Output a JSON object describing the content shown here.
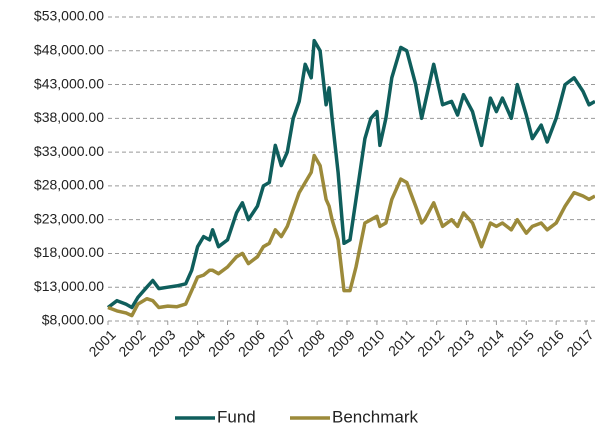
{
  "chart_data": {
    "type": "line",
    "x": [
      2001.0,
      2001.3,
      2001.6,
      2001.8,
      2002.0,
      2002.3,
      2002.5,
      2002.7,
      2003.0,
      2003.3,
      2003.6,
      2003.8,
      2004.0,
      2004.2,
      2004.4,
      2004.5,
      2004.7,
      2005.0,
      2005.3,
      2005.5,
      2005.7,
      2006.0,
      2006.2,
      2006.4,
      2006.6,
      2006.8,
      2007.0,
      2007.2,
      2007.4,
      2007.6,
      2007.8,
      2007.9,
      2008.1,
      2008.3,
      2008.4,
      2008.5,
      2008.7,
      2008.9,
      2009.1,
      2009.3,
      2009.6,
      2009.8,
      2010.0,
      2010.1,
      2010.3,
      2010.5,
      2010.8,
      2011.0,
      2011.3,
      2011.5,
      2011.6,
      2011.9,
      2012.2,
      2012.5,
      2012.7,
      2012.9,
      2013.2,
      2013.5,
      2013.8,
      2014.0,
      2014.2,
      2014.5,
      2014.7,
      2015.0,
      2015.2,
      2015.5,
      2015.7,
      2016.0,
      2016.3,
      2016.6,
      2016.9,
      2017.1,
      2017.3
    ],
    "series": [
      {
        "name": "Fund",
        "color": "#0f5e5c",
        "values": [
          10000,
          11000,
          10500,
          10000,
          11500,
          13000,
          14000,
          12800,
          13000,
          13200,
          13500,
          15500,
          19000,
          20500,
          20000,
          21500,
          19000,
          20000,
          24000,
          25500,
          23000,
          25000,
          28000,
          28500,
          34000,
          31000,
          33000,
          38000,
          40500,
          46000,
          44000,
          49500,
          48000,
          40000,
          42500,
          38000,
          30000,
          19500,
          20000,
          26000,
          35000,
          38000,
          39000,
          34000,
          38000,
          44000,
          48500,
          48000,
          43000,
          38000,
          40000,
          46000,
          40000,
          40500,
          38500,
          41500,
          39000,
          34000,
          41000,
          39000,
          41000,
          38000,
          43000,
          38500,
          35000,
          37000,
          34500,
          38000,
          43000,
          44000,
          42000,
          40000,
          40500
        ]
      },
      {
        "name": "Benchmark",
        "color": "#9c8a3a",
        "values": [
          10000,
          9500,
          9200,
          8800,
          10500,
          11300,
          11000,
          10000,
          10200,
          10100,
          10500,
          12500,
          14500,
          14800,
          15500,
          15500,
          15000,
          16000,
          17500,
          18000,
          16500,
          17500,
          19000,
          19500,
          21500,
          20500,
          22000,
          24500,
          27000,
          28500,
          30000,
          32500,
          31000,
          26000,
          25000,
          23000,
          20000,
          12500,
          12500,
          16000,
          22500,
          23000,
          23500,
          22000,
          22500,
          26000,
          29000,
          28500,
          25000,
          22500,
          23000,
          25500,
          22000,
          23000,
          22000,
          24000,
          22500,
          19000,
          22500,
          22000,
          22500,
          21500,
          23000,
          21000,
          22000,
          22500,
          21500,
          22500,
          25000,
          27000,
          26500,
          26000,
          26500
        ]
      }
    ],
    "xlim": [
      2001,
      2017.3
    ],
    "xticks": [
      2001,
      2002,
      2003,
      2004,
      2005,
      2006,
      2007,
      2008,
      2009,
      2010,
      2011,
      2012,
      2013,
      2014,
      2015,
      2016,
      2017
    ],
    "ylim": [
      8000,
      53000
    ],
    "yticks": [
      {
        "value": 8000,
        "label": "$8,000.00"
      },
      {
        "value": 13000,
        "label": "$13,000.00"
      },
      {
        "value": 18000,
        "label": "$18,000.00"
      },
      {
        "value": 23000,
        "label": "$23,000.00"
      },
      {
        "value": 28000,
        "label": "$28,000.00"
      },
      {
        "value": 33000,
        "label": "$33,000.00"
      },
      {
        "value": 38000,
        "label": "$38,000.00"
      },
      {
        "value": 43000,
        "label": "$43,000.00"
      },
      {
        "value": 48000,
        "label": "$48,000.00"
      },
      {
        "value": 53000,
        "label": "$53,000.00"
      }
    ],
    "grid": true,
    "legend": "bottom"
  }
}
